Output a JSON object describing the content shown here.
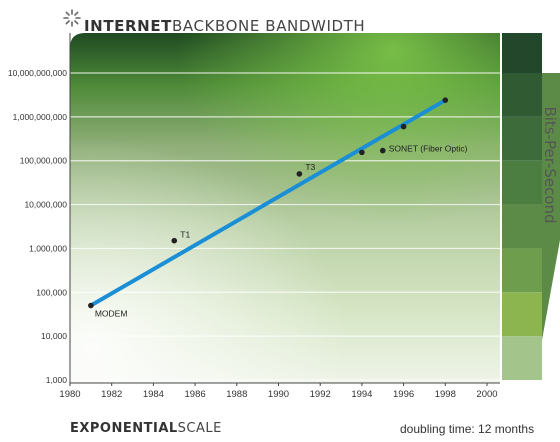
{
  "header": {
    "title_bold": "INTERNET",
    "title_light": "BACKBONE BANDWIDTH",
    "logo_icon": "asterisk-burst-icon"
  },
  "footer": {
    "left_bold": "EXPONENTIAL",
    "left_light": "SCALE",
    "right": "doubling time: 12 months"
  },
  "colors": {
    "line": "#1a8fd6",
    "point": "#222222",
    "panel_dark": "#23472a",
    "panel_light": "#c4dca8"
  },
  "chart_data": {
    "type": "scatter",
    "scale": "log",
    "x_ticks": [
      1980,
      1982,
      1984,
      1986,
      1988,
      1990,
      1992,
      1994,
      1996,
      1998,
      2000
    ],
    "y_ticks": [
      1000,
      10000,
      100000,
      1000000,
      10000000,
      100000000,
      1000000000,
      10000000000
    ],
    "y_tick_labels": [
      "1,000",
      "10,000",
      "100,000",
      "1,000,000",
      "10,000,000",
      "100,000,000",
      "1,000,000,000",
      "10,000,000,000"
    ],
    "xlim": [
      1980,
      2000
    ],
    "ylim": [
      1000,
      10000000000
    ],
    "series": [
      {
        "points": [
          {
            "x": 1981,
            "y": 50000,
            "label": "MODEM"
          },
          {
            "x": 1985,
            "y": 1500000,
            "label": "T1"
          },
          {
            "x": 1991,
            "y": 50000000,
            "label": "T3"
          },
          {
            "x": 1994,
            "y": 155000000,
            "label": ""
          },
          {
            "x": 1995,
            "y": 170000000,
            "label": "SONET (Fiber Optic)"
          },
          {
            "x": 1996,
            "y": 600000000,
            "label": ""
          },
          {
            "x": 1998,
            "y": 2400000000,
            "label": ""
          }
        ]
      }
    ],
    "trend_line": {
      "from": {
        "x": 1981,
        "y": 50000
      },
      "to": {
        "x": 1998,
        "y": 2400000000
      }
    },
    "side_label": "Bits-Per-Second",
    "grid": true
  }
}
